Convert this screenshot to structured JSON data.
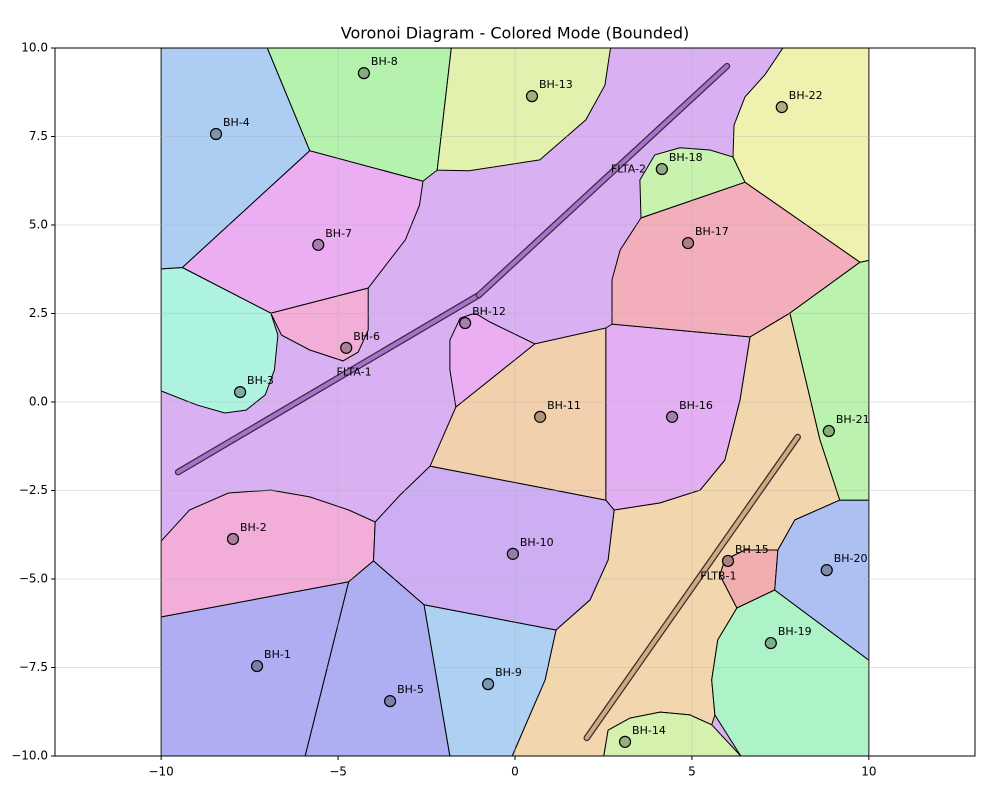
{
  "chart_data": {
    "type": "voronoi",
    "title": "Voronoi Diagram - Colored Mode (Bounded)",
    "xlim": [
      -13,
      13
    ],
    "ylim": [
      -10,
      10
    ],
    "xticks": [
      {
        "value": -10,
        "label": "−10"
      },
      {
        "value": -5,
        "label": "−5"
      },
      0,
      5,
      10
    ],
    "yticks": [
      {
        "value": -10,
        "label": "−10.0"
      },
      {
        "value": -7.5,
        "label": "−7.5"
      },
      {
        "value": -5,
        "label": "−5.0"
      },
      {
        "value": -2.5,
        "label": "−2.5"
      },
      {
        "value": 0,
        "label": "0.0"
      },
      2.5,
      {
        "value": 5,
        "label": "5.0"
      },
      7.5,
      {
        "value": 10,
        "label": "10.0"
      }
    ],
    "grid": true,
    "bounds": [
      [
        -10,
        10
      ],
      [
        10,
        10
      ],
      [
        10,
        -10
      ],
      [
        -10,
        -10
      ]
    ],
    "bounds_color": "#d9b0f2",
    "sites": [
      {
        "name": "BH-1",
        "x": -7.29,
        "y": -7.46,
        "color": "#b0aef2",
        "cell": [
          [
            -10,
            -6.07
          ],
          [
            -4.7,
            -5.08
          ],
          [
            -5.93,
            -10
          ],
          [
            -10,
            -10
          ]
        ]
      },
      {
        "name": "BH-2",
        "x": -7.97,
        "y": -3.87,
        "color": "#f2aed8",
        "cell": [
          [
            -10,
            -3.93
          ],
          [
            -9.2,
            -3.05
          ],
          [
            -8.1,
            -2.57
          ],
          [
            -6.9,
            -2.49
          ],
          [
            -5.8,
            -2.68
          ],
          [
            -4.7,
            -3.05
          ],
          [
            -3.95,
            -3.39
          ],
          [
            -4.0,
            -4.49
          ],
          [
            -4.7,
            -5.08
          ],
          [
            -10,
            -6.07
          ]
        ]
      },
      {
        "name": "BH-3",
        "x": -7.77,
        "y": 0.28,
        "color": "#aef2e0",
        "cell": [
          [
            -10,
            3.76
          ],
          [
            -9.4,
            3.8
          ],
          [
            -6.9,
            2.51
          ],
          [
            -6.7,
            1.89
          ],
          [
            -6.8,
            0.9
          ],
          [
            -7.06,
            0.2
          ],
          [
            -7.6,
            -0.23
          ],
          [
            -8.2,
            -0.31
          ],
          [
            -9.0,
            -0.08
          ],
          [
            -10,
            0.31
          ]
        ]
      },
      {
        "name": "BH-4",
        "x": -8.45,
        "y": 7.57,
        "color": "#aecdf2",
        "cell": [
          [
            -10,
            10
          ],
          [
            -7.0,
            10
          ],
          [
            -5.8,
            7.1
          ],
          [
            -9.4,
            3.8
          ],
          [
            -10,
            3.76
          ]
        ]
      },
      {
        "name": "BH-5",
        "x": -3.53,
        "y": -8.45,
        "color": "#aeaef2",
        "cell": [
          [
            -4.7,
            -5.08
          ],
          [
            -4.0,
            -4.49
          ],
          [
            -2.57,
            -5.73
          ],
          [
            -1.84,
            -10
          ],
          [
            -5.93,
            -10
          ]
        ]
      },
      {
        "name": "BH-6",
        "x": -4.77,
        "y": 1.53,
        "color": "#f2aed6",
        "cell": [
          [
            -6.9,
            2.51
          ],
          [
            -4.15,
            3.22
          ],
          [
            -4.15,
            2.03
          ],
          [
            -4.43,
            1.41
          ],
          [
            -4.86,
            1.16
          ],
          [
            -5.8,
            1.47
          ],
          [
            -6.6,
            1.89
          ]
        ]
      },
      {
        "name": "BH-7",
        "x": -5.56,
        "y": 4.44,
        "color": "#ebaef2",
        "cell": [
          [
            -9.4,
            3.8
          ],
          [
            -5.8,
            7.1
          ],
          [
            -2.6,
            6.24
          ],
          [
            -2.7,
            5.56
          ],
          [
            -3.1,
            4.58
          ],
          [
            -4.15,
            3.22
          ],
          [
            -6.9,
            2.51
          ]
        ]
      },
      {
        "name": "BH-8",
        "x": -4.27,
        "y": 9.29,
        "color": "#b4f2ae",
        "cell": [
          [
            -7.0,
            10
          ],
          [
            -1.8,
            10
          ],
          [
            -2.2,
            6.55
          ],
          [
            -2.6,
            6.24
          ],
          [
            -5.8,
            7.1
          ]
        ]
      },
      {
        "name": "BH-9",
        "x": -0.76,
        "y": -7.97,
        "color": "#aed0f2",
        "cell": [
          [
            -2.57,
            -5.73
          ],
          [
            1.16,
            -6.44
          ],
          [
            0.85,
            -7.85
          ],
          [
            0.42,
            -8.84
          ],
          [
            -0.08,
            -10
          ],
          [
            -1.84,
            -10
          ]
        ]
      },
      {
        "name": "BH-10",
        "x": -0.06,
        "y": -4.29,
        "color": "#cdaef2",
        "cell": [
          [
            -3.95,
            -3.39
          ],
          [
            -3.25,
            -2.63
          ],
          [
            -2.4,
            -1.81
          ],
          [
            2.57,
            -2.77
          ],
          [
            2.8,
            -3.05
          ],
          [
            2.63,
            -4.46
          ],
          [
            2.12,
            -5.59
          ],
          [
            1.16,
            -6.44
          ],
          [
            -2.57,
            -5.73
          ],
          [
            -4.0,
            -4.49
          ]
        ]
      },
      {
        "name": "BH-11",
        "x": 0.71,
        "y": -0.42,
        "color": "#f2d0ae",
        "cell": [
          [
            -2.4,
            -1.81
          ],
          [
            -1.67,
            -0.14
          ],
          [
            0.56,
            1.64
          ],
          [
            2.57,
            2.09
          ],
          [
            2.57,
            -2.77
          ]
        ]
      },
      {
        "name": "BH-12",
        "x": -1.41,
        "y": 2.23,
        "color": "#ebaef2",
        "cell": [
          [
            -1.67,
            -0.14
          ],
          [
            -1.84,
            0.9
          ],
          [
            -1.84,
            1.75
          ],
          [
            -1.55,
            2.37
          ],
          [
            -1.13,
            2.51
          ],
          [
            -0.71,
            2.26
          ],
          [
            0.56,
            1.64
          ]
        ]
      },
      {
        "name": "BH-13",
        "x": 0.48,
        "y": 8.64,
        "color": "#e2f2ae",
        "cell": [
          [
            -1.8,
            10
          ],
          [
            2.7,
            10
          ],
          [
            2.54,
            8.95
          ],
          [
            2.0,
            7.97
          ],
          [
            0.7,
            6.84
          ],
          [
            -1.3,
            6.53
          ],
          [
            -2.2,
            6.55
          ]
        ]
      },
      {
        "name": "BH-14",
        "x": 3.11,
        "y": -9.6,
        "color": "#d4f2ae",
        "cell": [
          [
            2.51,
            -10
          ],
          [
            2.63,
            -9.27
          ],
          [
            3.25,
            -8.93
          ],
          [
            4.1,
            -8.76
          ],
          [
            4.94,
            -8.84
          ],
          [
            5.56,
            -9.12
          ],
          [
            6.38,
            -10
          ]
        ]
      },
      {
        "name": "BH-15",
        "x": 6.02,
        "y": -4.49,
        "color": "#f2aeae",
        "cell": [
          [
            6.27,
            -5.82
          ],
          [
            7.34,
            -5.31
          ],
          [
            7.43,
            -4.18
          ],
          [
            6.5,
            -4.18
          ],
          [
            5.93,
            -4.46
          ],
          [
            5.79,
            -4.89
          ]
        ]
      },
      {
        "name": "BH-16",
        "x": 4.44,
        "y": -0.42,
        "color": "#e4aef2",
        "cell": [
          [
            2.57,
            2.09
          ],
          [
            2.74,
            2.2
          ],
          [
            6.64,
            1.84
          ],
          [
            6.36,
            0.06
          ],
          [
            5.93,
            -1.64
          ],
          [
            5.23,
            -2.49
          ],
          [
            4.1,
            -2.85
          ],
          [
            2.8,
            -3.05
          ],
          [
            2.57,
            -2.77
          ]
        ]
      },
      {
        "name": "BH-17",
        "x": 4.89,
        "y": 4.49,
        "color": "#f2aebb",
        "cell": [
          [
            3.56,
            5.2
          ],
          [
            6.5,
            6.21
          ],
          [
            9.75,
            3.95
          ],
          [
            7.77,
            2.51
          ],
          [
            6.64,
            1.84
          ],
          [
            2.74,
            2.2
          ],
          [
            2.74,
            3.45
          ],
          [
            2.97,
            4.29
          ]
        ]
      },
      {
        "name": "BH-18",
        "x": 4.15,
        "y": 6.58,
        "color": "#c8f2ae",
        "cell": [
          [
            3.56,
            5.2
          ],
          [
            3.53,
            6.27
          ],
          [
            3.95,
            6.98
          ],
          [
            4.66,
            7.18
          ],
          [
            5.51,
            7.12
          ],
          [
            6.16,
            6.92
          ],
          [
            6.5,
            6.21
          ]
        ]
      },
      {
        "name": "BH-19",
        "x": 7.23,
        "y": -6.81,
        "color": "#aef2c8",
        "cell": [
          [
            7.34,
            -5.31
          ],
          [
            10,
            -7.29
          ],
          [
            10,
            -10
          ],
          [
            6.38,
            -10
          ],
          [
            5.65,
            -8.84
          ],
          [
            5.56,
            -7.85
          ],
          [
            5.73,
            -6.72
          ],
          [
            6.27,
            -5.82
          ]
        ]
      },
      {
        "name": "BH-20",
        "x": 8.81,
        "y": -4.75,
        "color": "#aec0f2",
        "cell": [
          [
            9.18,
            -2.77
          ],
          [
            10,
            -2.77
          ],
          [
            10,
            -7.29
          ],
          [
            7.34,
            -5.31
          ],
          [
            7.43,
            -4.18
          ],
          [
            7.91,
            -3.33
          ]
        ]
      },
      {
        "name": "BH-21",
        "x": 8.87,
        "y": -0.82,
        "color": "#baf2ae",
        "cell": [
          [
            10,
            4.0
          ],
          [
            10,
            -2.77
          ],
          [
            9.18,
            -2.77
          ],
          [
            8.62,
            -1.07
          ],
          [
            7.77,
            2.51
          ],
          [
            9.75,
            3.95
          ]
        ]
      },
      {
        "name": "BH-22",
        "x": 7.54,
        "y": 8.33,
        "color": "#eef2ae",
        "cell": [
          [
            7.57,
            10
          ],
          [
            10,
            10
          ],
          [
            10,
            4.0
          ],
          [
            9.75,
            3.95
          ],
          [
            6.5,
            6.21
          ],
          [
            6.16,
            6.92
          ],
          [
            6.19,
            7.82
          ],
          [
            6.5,
            8.62
          ],
          [
            7.06,
            9.24
          ]
        ]
      }
    ],
    "faults": [
      {
        "name": "FLTA-1",
        "x": [
          -9.52,
          -1.02
        ],
        "y": [
          -1.98,
          3.02
        ],
        "color": "#a772cf"
      },
      {
        "name": "FLTA-2",
        "x": [
          -1.02,
          5.99
        ],
        "y": [
          3.02,
          9.49
        ],
        "color": "#a772cf"
      },
      {
        "name": "FLTB-1",
        "x": [
          2.03,
          7.99
        ],
        "y": [
          -9.49,
          -0.99
        ],
        "color": "#d2aa7a",
        "cell_color": "#f2d6ae",
        "cell": [
          [
            2.8,
            -3.05
          ],
          [
            4.1,
            -2.85
          ],
          [
            5.23,
            -2.49
          ],
          [
            5.93,
            -1.64
          ],
          [
            6.36,
            0.06
          ],
          [
            6.64,
            1.84
          ],
          [
            7.77,
            2.51
          ],
          [
            8.62,
            -1.07
          ],
          [
            9.18,
            -2.77
          ],
          [
            7.91,
            -3.33
          ],
          [
            7.43,
            -4.18
          ],
          [
            6.5,
            -4.18
          ],
          [
            5.93,
            -4.46
          ],
          [
            5.79,
            -4.89
          ],
          [
            6.27,
            -5.82
          ],
          [
            5.73,
            -6.72
          ],
          [
            5.56,
            -7.85
          ],
          [
            5.65,
            -8.84
          ],
          [
            5.56,
            -9.12
          ],
          [
            4.94,
            -8.84
          ],
          [
            4.1,
            -8.76
          ],
          [
            3.25,
            -8.93
          ],
          [
            2.63,
            -9.27
          ],
          [
            2.51,
            -10
          ],
          [
            -0.08,
            -10
          ],
          [
            0.42,
            -8.84
          ],
          [
            0.85,
            -7.85
          ],
          [
            1.16,
            -6.44
          ],
          [
            2.12,
            -5.59
          ],
          [
            2.63,
            -4.46
          ]
        ]
      }
    ]
  }
}
